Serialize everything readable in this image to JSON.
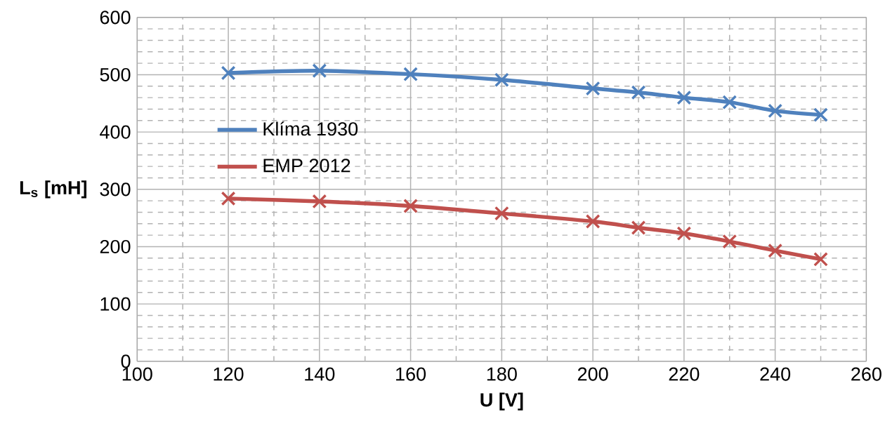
{
  "chart_data": {
    "type": "line",
    "xlabel": "U [V]",
    "ylabel": "L$_{s}$ [mH]",
    "x": [
      120,
      140,
      160,
      180,
      200,
      210,
      220,
      230,
      240,
      250
    ],
    "series": [
      {
        "name": "Klíma 1930",
        "color": "#4f81bd",
        "values": [
          503,
          507,
          501,
          491,
          476,
          469,
          460,
          452,
          437,
          430
        ]
      },
      {
        "name": "EMP 2012",
        "color": "#c0504d",
        "values": [
          284,
          279,
          271,
          258,
          244,
          233,
          223,
          209,
          193,
          178
        ]
      }
    ],
    "xlim": [
      100,
      260
    ],
    "ylim": [
      0,
      600
    ],
    "xticks": [
      100,
      {
        "value": 110,
        "label": null
      },
      120,
      {
        "value": 130,
        "label": null
      },
      140,
      {
        "value": 150,
        "label": null
      },
      160,
      {
        "value": 170,
        "label": null
      },
      180,
      {
        "value": 190,
        "label": null
      },
      200,
      {
        "value": 210,
        "label": null
      },
      220,
      {
        "value": 230,
        "label": null
      },
      240,
      {
        "value": 250,
        "label": null
      },
      260
    ],
    "yticks": [
      0,
      {
        "value": 20,
        "label": null
      },
      {
        "value": 40,
        "label": null
      },
      {
        "value": 60,
        "label": null
      },
      {
        "value": 80,
        "label": null
      },
      100,
      {
        "value": 120,
        "label": null
      },
      {
        "value": 140,
        "label": null
      },
      {
        "value": 160,
        "label": null
      },
      {
        "value": 180,
        "label": null
      },
      200,
      {
        "value": 220,
        "label": null
      },
      {
        "value": 240,
        "label": null
      },
      {
        "value": 260,
        "label": null
      },
      {
        "value": 280,
        "label": null
      },
      300,
      {
        "value": 320,
        "label": null
      },
      {
        "value": 340,
        "label": null
      },
      {
        "value": 360,
        "label": null
      },
      {
        "value": 380,
        "label": null
      },
      400,
      {
        "value": 420,
        "label": null
      },
      {
        "value": 440,
        "label": null
      },
      {
        "value": 460,
        "label": null
      },
      {
        "value": 480,
        "label": null
      },
      500,
      {
        "value": 520,
        "label": null
      },
      {
        "value": 540,
        "label": null
      },
      {
        "value": 560,
        "label": null
      },
      {
        "value": 580,
        "label": null
      },
      600
    ],
    "grid": true,
    "legend": "left",
    "marker": "cross",
    "line_style": "solid"
  }
}
